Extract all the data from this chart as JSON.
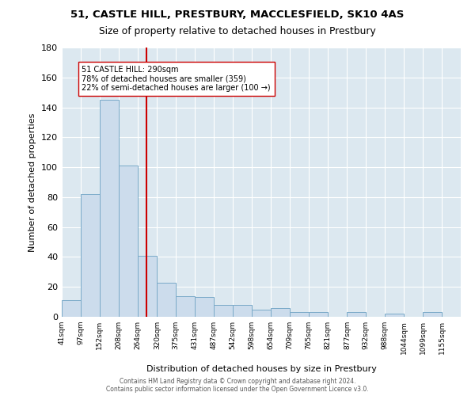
{
  "title_line1": "51, CASTLE HILL, PRESTBURY, MACCLESFIELD, SK10 4AS",
  "title_line2": "Size of property relative to detached houses in Prestbury",
  "xlabel": "Distribution of detached houses by size in Prestbury",
  "ylabel": "Number of detached properties",
  "bar_values": [
    11,
    82,
    145,
    101,
    41,
    23,
    14,
    13,
    8,
    8,
    5,
    6,
    3,
    3,
    0,
    3,
    0,
    2,
    0,
    3,
    0
  ],
  "bin_labels": [
    "41sqm",
    "97sqm",
    "152sqm",
    "208sqm",
    "264sqm",
    "320sqm",
    "375sqm",
    "431sqm",
    "487sqm",
    "542sqm",
    "598sqm",
    "654sqm",
    "709sqm",
    "765sqm",
    "821sqm",
    "877sqm",
    "932sqm",
    "988sqm",
    "1044sqm",
    "1099sqm",
    "1155sqm"
  ],
  "bar_color": "#ccdcec",
  "bar_edge_color": "#7aaac8",
  "vline_x": 290,
  "vline_color": "#cc0000",
  "ylim": [
    0,
    180
  ],
  "yticks": [
    0,
    20,
    40,
    60,
    80,
    100,
    120,
    140,
    160,
    180
  ],
  "footer_text": "Contains HM Land Registry data © Crown copyright and database right 2024.\nContains public sector information licensed under the Open Government Licence v3.0.",
  "bin_edges": [
    41,
    97,
    152,
    208,
    264,
    320,
    375,
    431,
    487,
    542,
    598,
    654,
    709,
    765,
    821,
    877,
    932,
    988,
    1044,
    1099,
    1155,
    1210
  ]
}
